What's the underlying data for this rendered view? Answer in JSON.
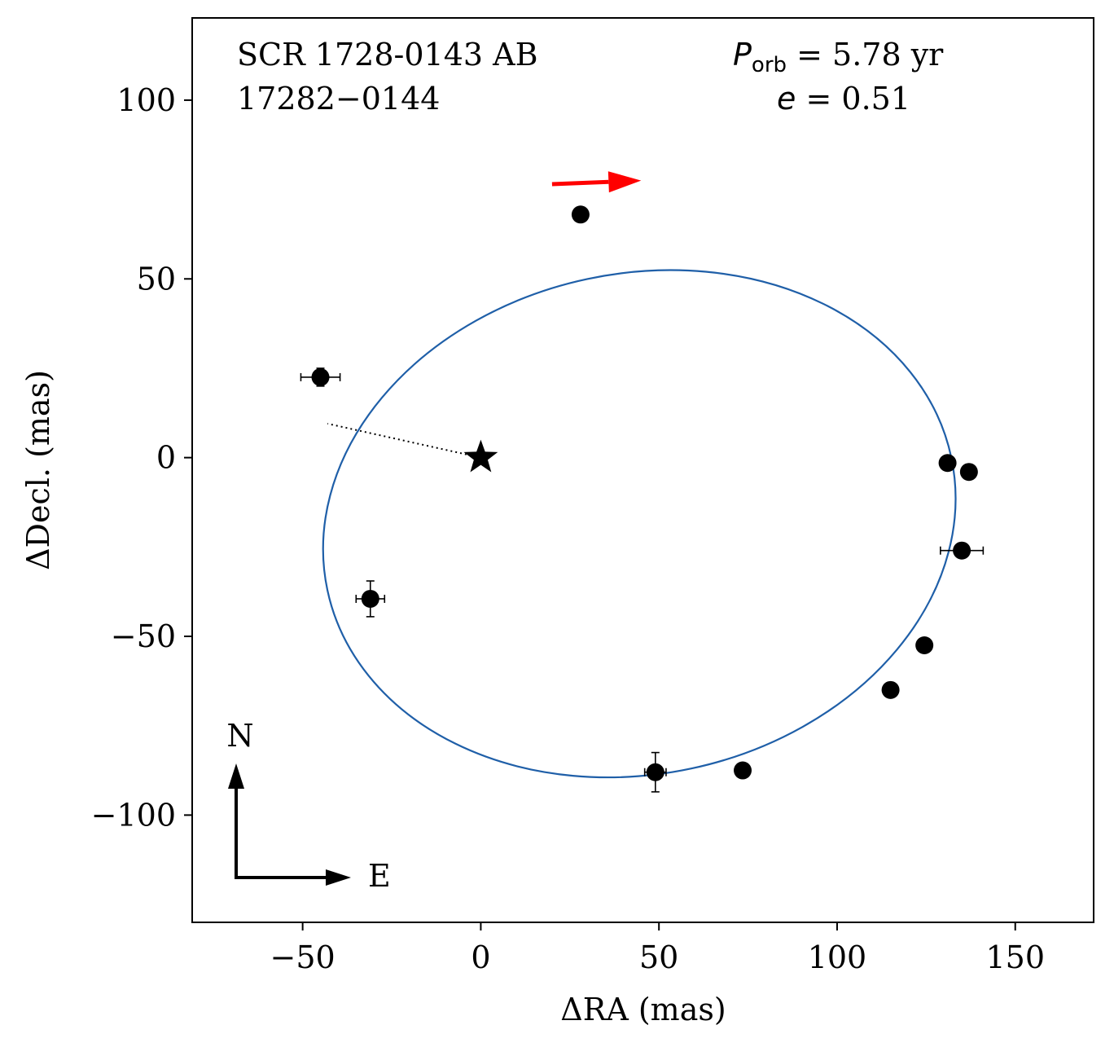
{
  "chart_data": {
    "type": "scatter",
    "title": "SCR 1728-0143 AB",
    "subtitle": "17282−0144",
    "xlabel": "ΔRA  (mas)",
    "ylabel": "ΔDecl.  (mas)",
    "xlim": [
      -81,
      172
    ],
    "ylim": [
      -130,
      123
    ],
    "xticks": [
      -50,
      0,
      50,
      100,
      150
    ],
    "yticks": [
      -100,
      -50,
      0,
      50,
      100
    ],
    "xtick_labels": [
      "−50",
      "0",
      "50",
      "100",
      "150"
    ],
    "ytick_labels": [
      "−100",
      "−50",
      "0",
      "50",
      "100"
    ],
    "grid": false,
    "period": {
      "symbol": "P",
      "subscript": "orb",
      "text": " =  5.78 yr"
    },
    "eccentricity": {
      "symbol": "e",
      "text": " = 0.51"
    },
    "orbit": {
      "color": "#1f5fa8",
      "center": [
        44.5,
        -18.5
      ],
      "semi_axes": [
        89.5,
        70
      ],
      "rotation_deg": -12
    },
    "primary_star": {
      "x": 0,
      "y": 0,
      "marker": "star",
      "color": "#000000"
    },
    "periastron_line": {
      "x": [
        0,
        -43
      ],
      "y": [
        0,
        9.5
      ],
      "style": "dotted"
    },
    "direction_arrow": {
      "x": [
        20,
        45
      ],
      "y": [
        76.5,
        77.5
      ],
      "color": "#ff0000"
    },
    "points": [
      {
        "x": 28,
        "y": 68,
        "xerr": 0,
        "yerr": 0
      },
      {
        "x": -45,
        "y": 22.5,
        "xerr": 5.5,
        "yerr": 2.5
      },
      {
        "x": -31,
        "y": -39.5,
        "xerr": 4,
        "yerr": 5
      },
      {
        "x": 49,
        "y": -88,
        "xerr": 3,
        "yerr": 5.5
      },
      {
        "x": 73.5,
        "y": -87.5,
        "xerr": 0,
        "yerr": 0
      },
      {
        "x": 115,
        "y": -65,
        "xerr": 0,
        "yerr": 0
      },
      {
        "x": 124.5,
        "y": -52.5,
        "xerr": 1,
        "yerr": 0
      },
      {
        "x": 135,
        "y": -26,
        "xerr": 6,
        "yerr": 0
      },
      {
        "x": 131,
        "y": -1.5,
        "xerr": 0,
        "yerr": 0
      },
      {
        "x": 137,
        "y": -4,
        "xerr": 0,
        "yerr": 0
      }
    ],
    "compass": {
      "north_label": "N",
      "east_label": "E"
    }
  }
}
